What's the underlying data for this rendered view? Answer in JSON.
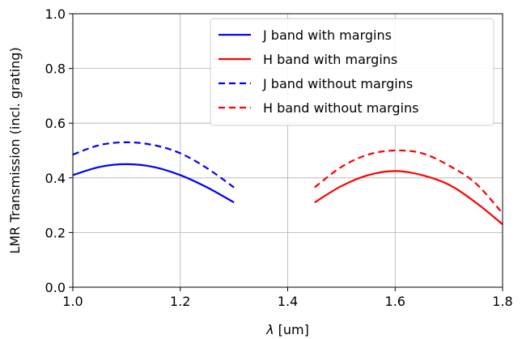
{
  "chart_data": {
    "type": "line",
    "xlabel_symbol": "λ",
    "xlabel_unit": " [um]",
    "ylabel": "LMR Transmission (incl. grating)",
    "xlim": [
      1.0,
      1.8
    ],
    "ylim": [
      0.0,
      1.0
    ],
    "xticks": [
      1.0,
      1.2,
      1.4,
      1.6,
      1.8
    ],
    "xtick_labels": [
      "1.0",
      "1.2",
      "1.4",
      "1.6",
      "1.8"
    ],
    "yticks": [
      0.0,
      0.2,
      0.4,
      0.6,
      0.8,
      1.0
    ],
    "ytick_labels": [
      "0.0",
      "0.2",
      "0.4",
      "0.6",
      "0.8",
      "1.0"
    ],
    "grid": true,
    "legend_position": "top-right",
    "series": [
      {
        "name": "J band with margins",
        "color": "#0000ff",
        "style": "solid",
        "x": [
          1.0,
          1.05,
          1.1,
          1.15,
          1.2,
          1.25,
          1.3
        ],
        "y": [
          0.41,
          0.44,
          0.45,
          0.44,
          0.41,
          0.365,
          0.31
        ]
      },
      {
        "name": "H band with margins",
        "color": "#ff0000",
        "style": "solid",
        "x": [
          1.45,
          1.5,
          1.55,
          1.6,
          1.65,
          1.7,
          1.75,
          1.8
        ],
        "y": [
          0.31,
          0.37,
          0.41,
          0.425,
          0.41,
          0.375,
          0.31,
          0.23
        ]
      },
      {
        "name": "J band without margins",
        "color": "#0000ff",
        "style": "dashed",
        "x": [
          1.0,
          1.05,
          1.1,
          1.15,
          1.2,
          1.25,
          1.3
        ],
        "y": [
          0.485,
          0.52,
          0.53,
          0.52,
          0.49,
          0.435,
          0.365
        ]
      },
      {
        "name": "H band without margins",
        "color": "#ff0000",
        "style": "dashed",
        "x": [
          1.45,
          1.5,
          1.55,
          1.6,
          1.65,
          1.7,
          1.75,
          1.8
        ],
        "y": [
          0.365,
          0.44,
          0.485,
          0.5,
          0.49,
          0.445,
          0.38,
          0.27
        ]
      }
    ]
  }
}
